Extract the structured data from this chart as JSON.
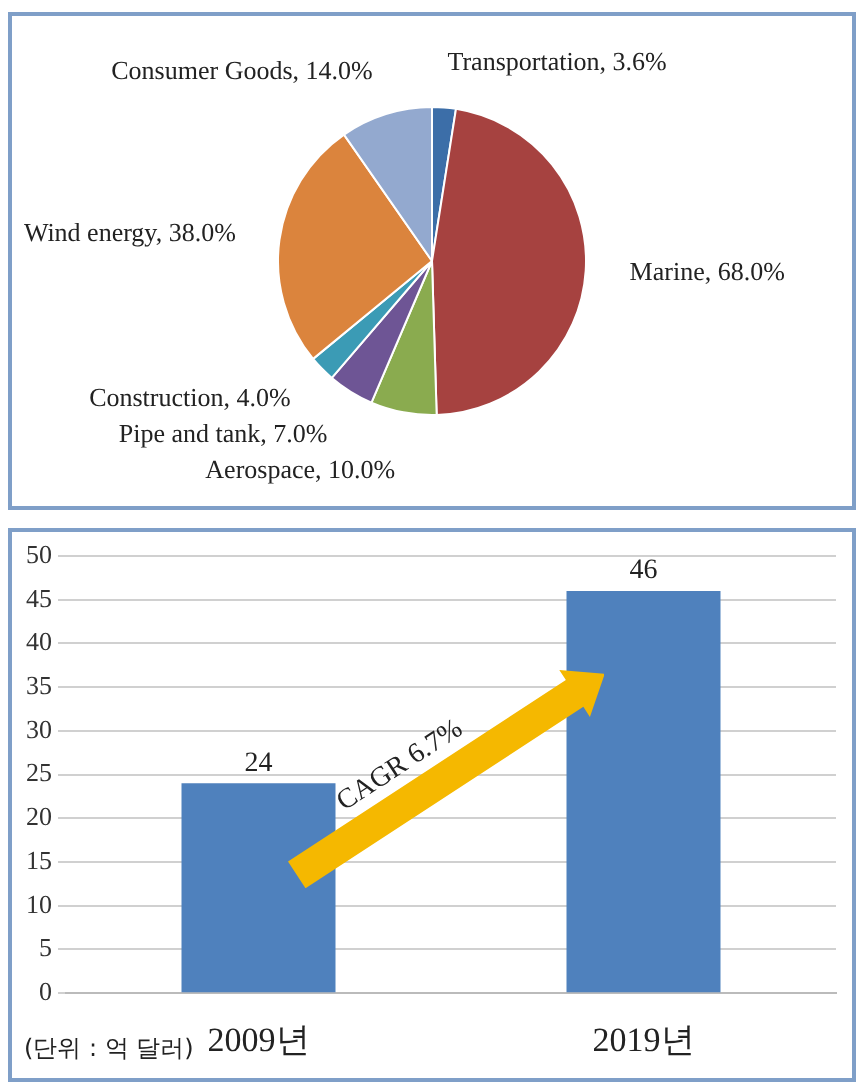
{
  "chart_data": [
    {
      "type": "pie",
      "categories": [
        "Transportation",
        "Marine",
        "Aerospace",
        "Pipe and tank",
        "Construction",
        "Wind energy",
        "Consumer Goods"
      ],
      "values": [
        3.6,
        68.0,
        10.0,
        7.0,
        4.0,
        38.0,
        14.0
      ],
      "value_labels": [
        "3.6%",
        "68.0%",
        "10.0%",
        "7.0%",
        "4.0%",
        "38.0%",
        "14.0%"
      ],
      "colors": [
        "#3c6ea8",
        "#a64240",
        "#8aab4f",
        "#6e5595",
        "#3b9bb5",
        "#db843d",
        "#93a9cf"
      ],
      "legend": false
    },
    {
      "type": "bar",
      "categories": [
        "2009년",
        "2019년"
      ],
      "values": [
        24,
        46
      ],
      "color": "#4f81bd",
      "ylim": [
        0,
        50
      ],
      "yticks": [
        0,
        5,
        10,
        15,
        20,
        25,
        30,
        35,
        40,
        45,
        50
      ],
      "grid": "y",
      "data_labels": true,
      "legend": false,
      "annotations": [
        "CAGR 6.7%",
        "(단위 : 억 달러)"
      ]
    }
  ]
}
